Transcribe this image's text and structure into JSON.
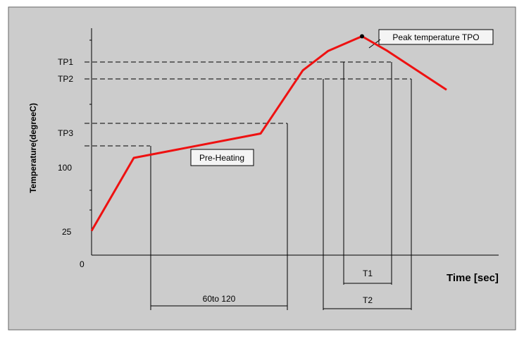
{
  "chart_data": {
    "type": "line",
    "title": "",
    "xlabel": "Time [sec]",
    "ylabel": "Temperature(degreeC)",
    "y_ticks": [
      {
        "label": "TP1",
        "key": "tp1"
      },
      {
        "label": "TP2",
        "key": "tp2"
      },
      {
        "label": "TP3",
        "key": "tp3"
      },
      {
        "label": "100",
        "key": "t100"
      },
      {
        "label": "25",
        "key": "t25"
      },
      {
        "label": "0",
        "key": "t0"
      }
    ],
    "series": [
      {
        "color": "#ee1111",
        "points": [
          {
            "t": 0,
            "temp": 25
          },
          {
            "t": 1,
            "temp": 100
          },
          {
            "t": 4,
            "temp": 125
          },
          {
            "t": 5,
            "temp": 190
          },
          {
            "t": 5.6,
            "temp": 210
          },
          {
            "t": 6.4,
            "temp": 225
          },
          {
            "t": 7.0,
            "temp": 210
          },
          {
            "t": 8.4,
            "temp": 170
          }
        ]
      }
    ],
    "annotations": {
      "peak_label": "Peak temperature TPO",
      "preheat_label": "Pre-Heating",
      "preheat_duration": "60to 120",
      "t1": "T1",
      "t2": "T2"
    },
    "grid": false,
    "legend": "none"
  },
  "colors": {
    "background": "#cccccc",
    "curve": "#ee1111",
    "lines": "#000000"
  }
}
